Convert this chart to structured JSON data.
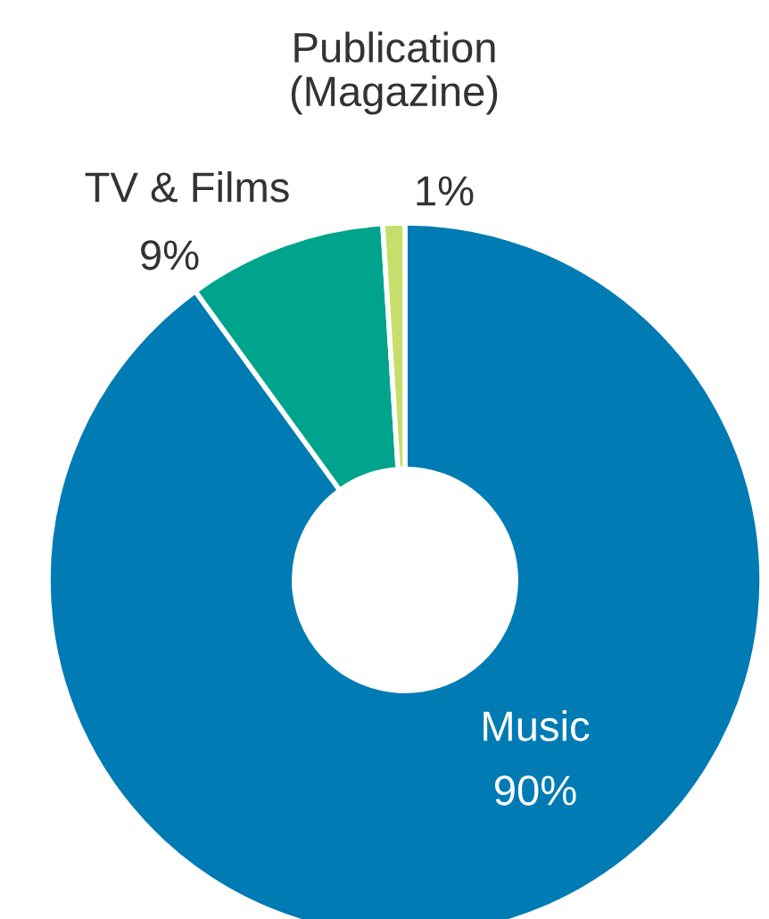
{
  "chart_data": {
    "type": "donut",
    "categories": [
      "Music",
      "TV & Films",
      "Publication\n(Magazine)"
    ],
    "values": [
      90,
      9,
      1
    ],
    "colors": [
      "#007bb4",
      "#00a48c",
      "#c6df6c"
    ],
    "value_labels": [
      "90%",
      "9%",
      "1%"
    ],
    "legend": false
  }
}
